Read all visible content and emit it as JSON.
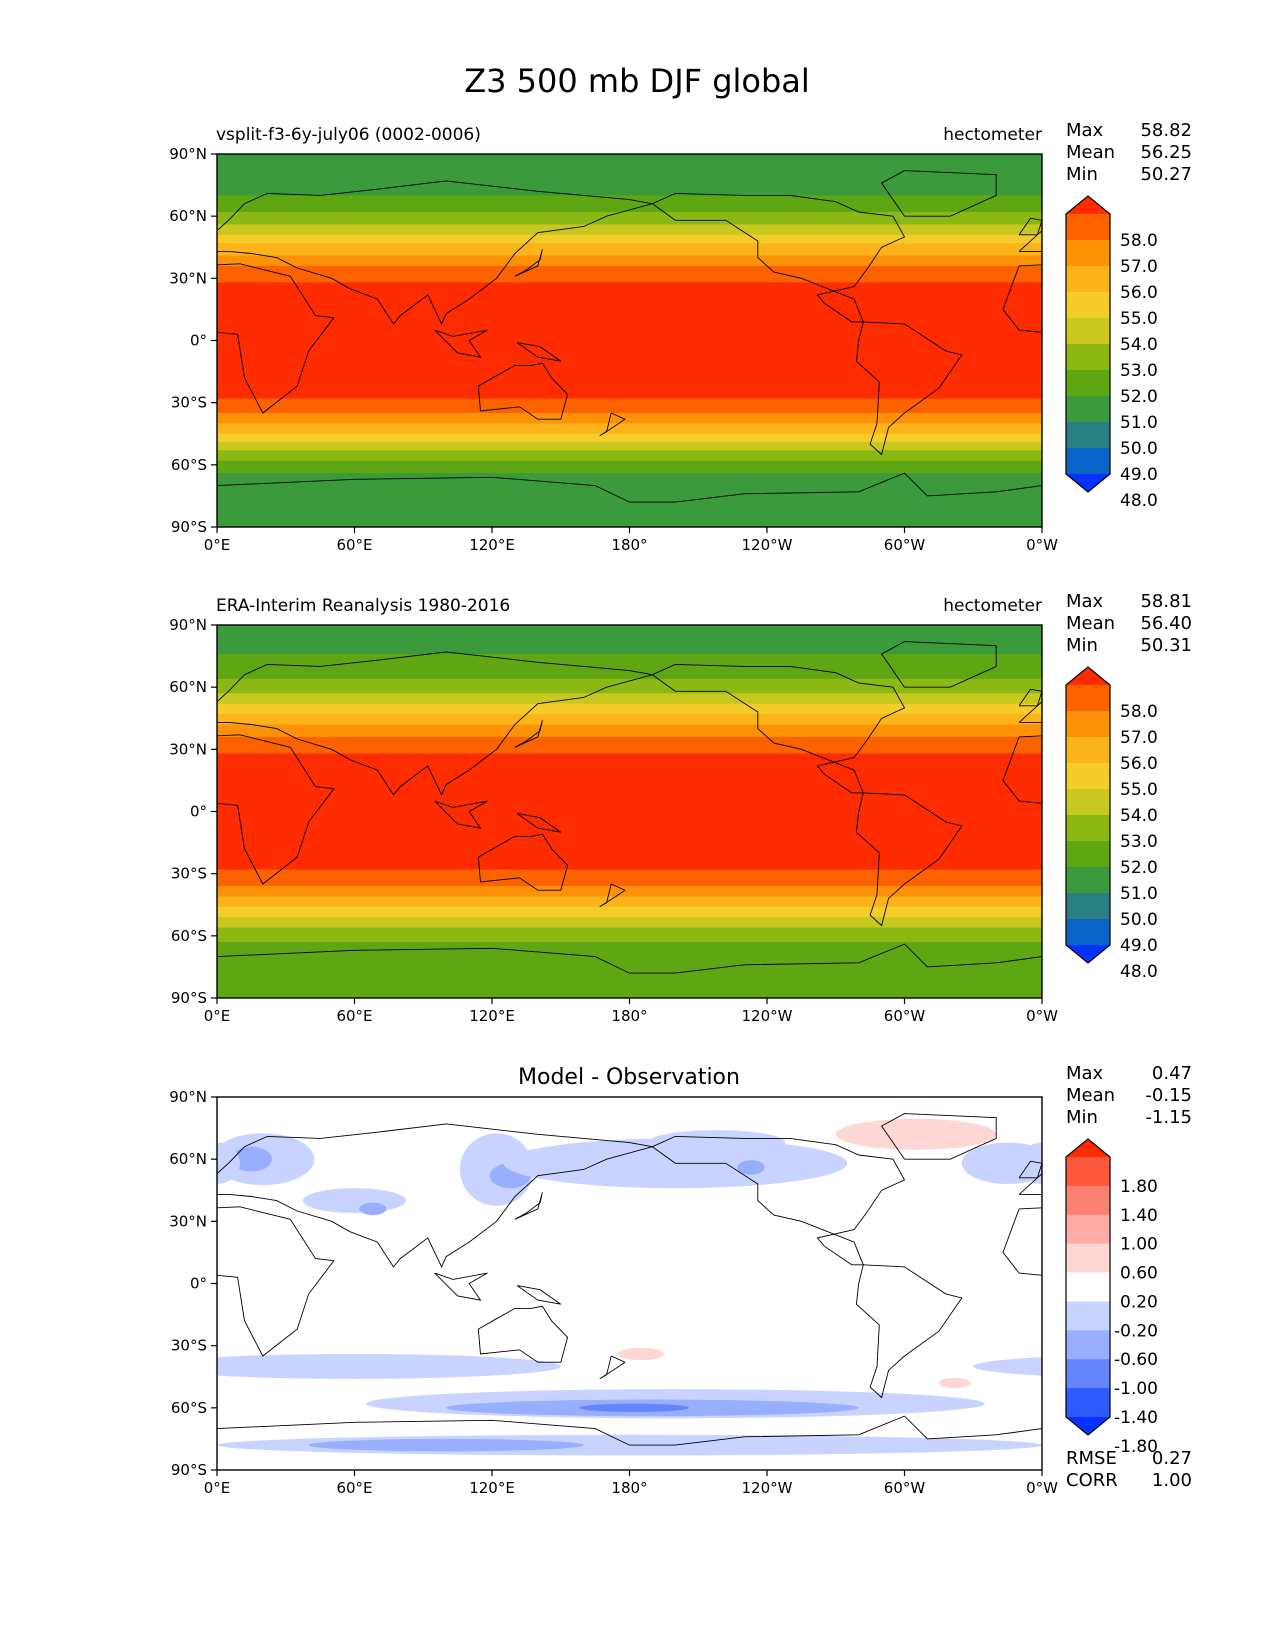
{
  "figure_title": "Z3 500 mb DJF global",
  "colors": {
    "main_scale": [
      "#0433ff",
      "#0a64c8",
      "#2a8080",
      "#3a9a3c",
      "#5ea712",
      "#8db814",
      "#c8c81e",
      "#f5cd2a",
      "#fdb31a",
      "#fd9208",
      "#fd6200",
      "#fe2c00"
    ],
    "diff_scale": [
      "#0433ff",
      "#2f5cff",
      "#6585ff",
      "#98aeff",
      "#c8d4ff",
      "#ffffff",
      "#fed7d4",
      "#fdada6",
      "#fd8171",
      "#fd573c",
      "#fe2c00"
    ],
    "land_outline": "#000000"
  },
  "chart_data": [
    {
      "type": "heatmap",
      "name": "panel-model",
      "title_left": "vsplit-f3-6y-july06 (0002-0006)",
      "title_right": "hectometer",
      "x_tick_labels": [
        "0°E",
        "60°E",
        "120°E",
        "180°",
        "120°W",
        "60°W",
        "0°W"
      ],
      "y_tick_labels": [
        "90°N",
        "60°N",
        "30°N",
        "0°",
        "30°S",
        "60°S",
        "90°S"
      ],
      "xlim": [
        0,
        360
      ],
      "ylim": [
        -90,
        90
      ],
      "stats": {
        "labels": [
          "Max",
          "Mean",
          "Min"
        ],
        "values": [
          "58.82",
          "56.25",
          "50.27"
        ]
      },
      "colorbar_labels": [
        "58.0",
        "57.0",
        "56.0",
        "55.0",
        "54.0",
        "53.0",
        "52.0",
        "51.0",
        "50.0",
        "49.0",
        "48.0"
      ],
      "zonal_profile": {
        "lat": [
          90,
          80,
          70,
          60,
          55,
          50,
          45,
          40,
          35,
          30,
          25,
          20,
          0,
          -20,
          -25,
          -30,
          -35,
          -40,
          -45,
          -50,
          -55,
          -60,
          -65,
          -70,
          -80,
          -90
        ],
        "z3": [
          50.3,
          50.5,
          51.0,
          52.2,
          53.2,
          54.3,
          55.3,
          56.2,
          57.2,
          57.8,
          58.2,
          58.5,
          58.8,
          58.6,
          58.2,
          57.8,
          57.0,
          56.0,
          55.0,
          53.8,
          52.6,
          51.5,
          50.8,
          50.4,
          50.3,
          50.3
        ]
      }
    },
    {
      "type": "heatmap",
      "name": "panel-observation",
      "title_left": "ERA-Interim Reanalysis 1980-2016",
      "title_right": "hectometer",
      "x_tick_labels": [
        "0°E",
        "60°E",
        "120°E",
        "180°",
        "120°W",
        "60°W",
        "0°W"
      ],
      "y_tick_labels": [
        "90°N",
        "60°N",
        "30°N",
        "0°",
        "30°S",
        "60°S",
        "90°S"
      ],
      "xlim": [
        0,
        360
      ],
      "ylim": [
        -90,
        90
      ],
      "stats": {
        "labels": [
          "Max",
          "Mean",
          "Min"
        ],
        "values": [
          "58.81",
          "56.40",
          "50.31"
        ]
      },
      "colorbar_labels": [
        "58.0",
        "57.0",
        "56.0",
        "55.0",
        "54.0",
        "53.0",
        "52.0",
        "51.0",
        "50.0",
        "49.0",
        "48.0"
      ],
      "zonal_profile": {
        "lat": [
          90,
          80,
          70,
          60,
          55,
          50,
          45,
          40,
          35,
          30,
          25,
          20,
          0,
          -20,
          -25,
          -30,
          -35,
          -40,
          -45,
          -50,
          -55,
          -60,
          -65,
          -70,
          -80,
          -90
        ],
        "z3": [
          50.5,
          50.8,
          51.3,
          52.4,
          53.4,
          54.4,
          55.4,
          56.3,
          57.2,
          57.8,
          58.2,
          58.5,
          58.8,
          58.6,
          58.2,
          57.8,
          57.1,
          56.2,
          55.2,
          54.1,
          53.1,
          52.3,
          51.8,
          51.5,
          51.2,
          51.1
        ]
      }
    },
    {
      "type": "heatmap",
      "name": "panel-difference",
      "title_center": "Model - Observation",
      "x_tick_labels": [
        "0°E",
        "60°E",
        "120°E",
        "180°",
        "120°W",
        "60°W",
        "0°W"
      ],
      "y_tick_labels": [
        "90°N",
        "60°N",
        "30°N",
        "0°",
        "30°S",
        "60°S",
        "90°S"
      ],
      "xlim": [
        0,
        360
      ],
      "ylim": [
        -90,
        90
      ],
      "stats": {
        "labels": [
          "Max",
          "Mean",
          "Min"
        ],
        "values": [
          "0.47",
          "-0.15",
          "-1.15"
        ]
      },
      "colorbar_labels": [
        "1.80",
        "1.40",
        "1.00",
        "0.60",
        "0.20",
        "-0.20",
        "-0.60",
        "-1.00",
        "-1.40",
        "-1.80"
      ],
      "bottom_stats": {
        "labels": [
          "RMSE",
          "CORR"
        ],
        "values": [
          "0.27",
          "1.00"
        ]
      },
      "anomalies": [
        {
          "lon": 20,
          "lat": 60,
          "dlon": 45,
          "dlat": 25,
          "v": -0.35
        },
        {
          "lon": 15,
          "lat": 60,
          "dlon": 18,
          "dlat": 12,
          "v": -0.75
        },
        {
          "lon": 60,
          "lat": 40,
          "dlon": 45,
          "dlat": 12,
          "v": -0.35
        },
        {
          "lon": 68,
          "lat": 36,
          "dlon": 12,
          "dlat": 6,
          "v": -0.75
        },
        {
          "lon": 122,
          "lat": 55,
          "dlon": 32,
          "dlat": 35,
          "v": -0.35
        },
        {
          "lon": 128,
          "lat": 52,
          "dlon": 18,
          "dlat": 12,
          "v": -0.75
        },
        {
          "lon": 200,
          "lat": 58,
          "dlon": 150,
          "dlat": 24,
          "v": -0.35
        },
        {
          "lon": 233,
          "lat": 56,
          "dlon": 12,
          "dlat": 7,
          "v": -0.75
        },
        {
          "lon": 305,
          "lat": 72,
          "dlon": 70,
          "dlat": 15,
          "v": 0.3
        },
        {
          "lon": 345,
          "lat": 58,
          "dlon": 40,
          "dlat": 20,
          "v": -0.35
        },
        {
          "lon": 0,
          "lat": 58,
          "dlon": 20,
          "dlat": 20,
          "v": -0.35
        },
        {
          "lon": 60,
          "lat": -40,
          "dlon": 180,
          "dlat": 12,
          "v": -0.35
        },
        {
          "lon": 200,
          "lat": -58,
          "dlon": 270,
          "dlat": 14,
          "v": -0.35
        },
        {
          "lon": 190,
          "lat": -60,
          "dlon": 180,
          "dlat": 8,
          "v": -0.75
        },
        {
          "lon": 182,
          "lat": -60,
          "dlon": 48,
          "dlat": 4,
          "v": -1.15
        },
        {
          "lon": 180,
          "lat": -78,
          "dlon": 360,
          "dlat": 10,
          "v": -0.35
        },
        {
          "lon": 100,
          "lat": -78,
          "dlon": 120,
          "dlat": 6,
          "v": -0.75
        },
        {
          "lon": 185,
          "lat": -34,
          "dlon": 20,
          "dlat": 6,
          "v": 0.3
        },
        {
          "lon": 322,
          "lat": -48,
          "dlon": 14,
          "dlat": 5,
          "v": 0.3
        },
        {
          "lon": 218,
          "lat": 68,
          "dlon": 60,
          "dlat": 12,
          "v": -0.35
        }
      ]
    }
  ]
}
